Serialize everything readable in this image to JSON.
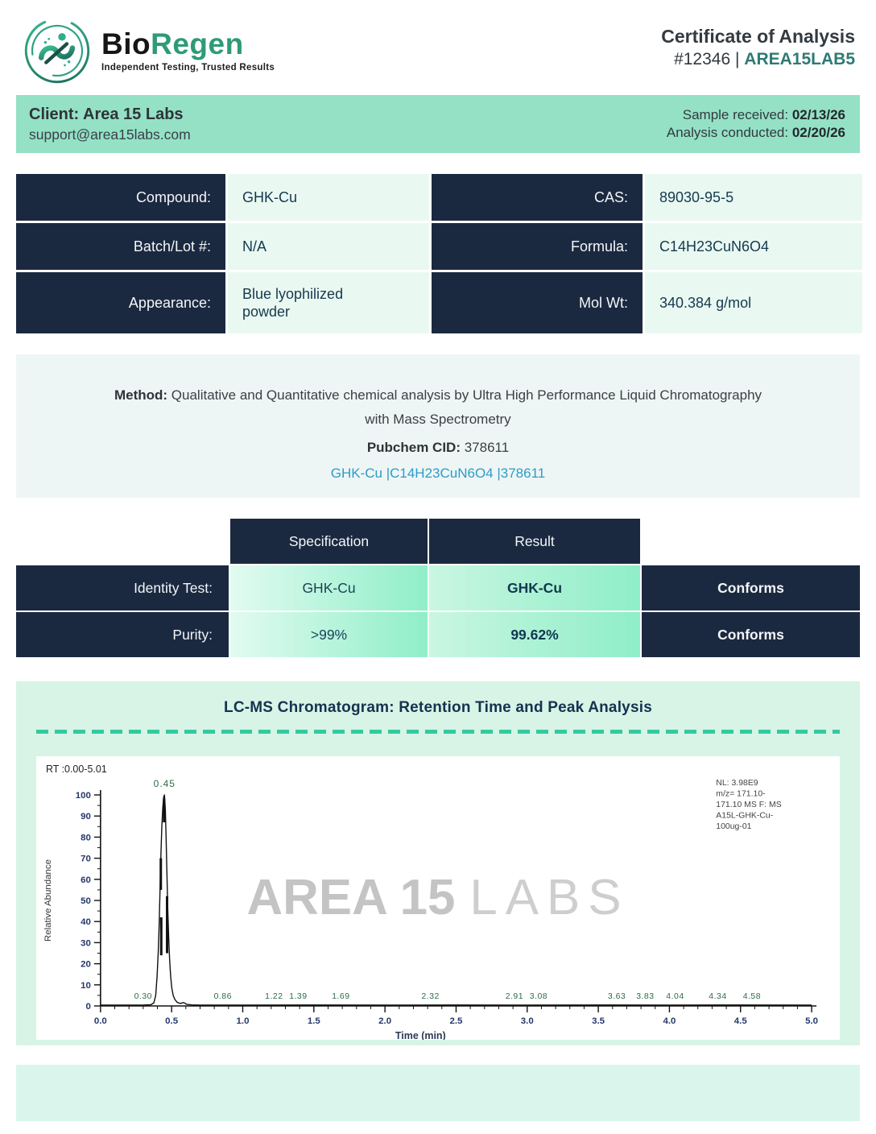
{
  "header": {
    "logo": {
      "brand_bio": "Bio",
      "brand_regen": "Regen",
      "tagline": "Independent Testing, Trusted Results"
    },
    "title": "Certificate of Analysis",
    "report_number": "#12346",
    "separator": "|",
    "report_code": "AREA15LAB5"
  },
  "client_banner": {
    "client_name": "Client: Area 15 Labs",
    "client_email": "support@area15labs.com",
    "sample_received_label": "Sample received: ",
    "sample_received_date": "02/13/26",
    "analysis_conducted_label": "Analysis conducted: ",
    "analysis_conducted_date": "02/20/26"
  },
  "compound_table": {
    "rows": [
      {
        "left_label": "Compound:",
        "left_value": "GHK-Cu",
        "right_label": "CAS:",
        "right_value": "89030-95-5"
      },
      {
        "left_label": "Batch/Lot #:",
        "left_value": "N/A",
        "right_label": "Formula:",
        "right_value": "C14H23CuN6O4"
      },
      {
        "left_label": "Appearance:",
        "left_value": "Blue lyophilized powder",
        "right_label": "Mol Wt:",
        "right_value": "340.384 g/mol"
      }
    ]
  },
  "method_section": {
    "method_label": "Method: ",
    "method_text": "Qualitative and Quantitative chemical analysis by Ultra High Performance Liquid Chromatography with Mass Spectrometry",
    "pubchem_label": "Pubchem CID: ",
    "pubchem_value": "378611",
    "link_text": "GHK-Cu |C14H23CuN6O4 |378611"
  },
  "results_table": {
    "headers": {
      "specification": "Specification",
      "result": "Result"
    },
    "rows": [
      {
        "label": "Identity Test:",
        "specification": "GHK-Cu",
        "result": "GHK-Cu",
        "status": "Conforms"
      },
      {
        "label": "Purity:",
        "specification": ">99%",
        "result": "99.62%",
        "status": "Conforms"
      }
    ]
  },
  "chromatogram": {
    "title": "LC-MS Chromatogram: Retention Time and Peak Analysis",
    "watermark": {
      "bold": "AREA 15",
      "light": "LABS"
    }
  },
  "chart_data": {
    "type": "line",
    "title": "LC-MS Chromatogram",
    "rt_label": "RT :0.00-5.01",
    "xlabel": "Time (min)",
    "ylabel": "Relative Abundance",
    "xlim": [
      0.0,
      5.0
    ],
    "ylim": [
      0,
      100
    ],
    "x_major_tick_step": 0.5,
    "x_minor_tick_step": 0.1,
    "y_major_tick_step": 10,
    "y_minor_tick_step": 5,
    "main_peak": {
      "rt": 0.45,
      "abundance": 100,
      "label": "0.45"
    },
    "minor_peak_labels": [
      "0.30",
      "0.86",
      "1.22",
      "1.39",
      "1.69",
      "2.32",
      "2.91",
      "3.08",
      "3.63",
      "3.83",
      "4.04",
      "4.34",
      "4.58"
    ],
    "trace": [
      [
        0.0,
        0.4
      ],
      [
        0.3,
        0.4
      ],
      [
        0.355,
        0.6
      ],
      [
        0.375,
        1.5
      ],
      [
        0.388,
        5
      ],
      [
        0.398,
        14
      ],
      [
        0.406,
        26
      ],
      [
        0.413,
        40
      ],
      [
        0.419,
        57
      ],
      [
        0.425,
        72
      ],
      [
        0.431,
        85
      ],
      [
        0.438,
        94
      ],
      [
        0.444,
        99
      ],
      [
        0.45,
        100
      ],
      [
        0.456,
        93
      ],
      [
        0.461,
        80
      ],
      [
        0.467,
        62
      ],
      [
        0.473,
        46
      ],
      [
        0.479,
        33
      ],
      [
        0.486,
        22
      ],
      [
        0.493,
        14
      ],
      [
        0.501,
        8.5
      ],
      [
        0.511,
        5
      ],
      [
        0.523,
        3
      ],
      [
        0.538,
        1.8
      ],
      [
        0.558,
        1.2
      ],
      [
        0.585,
        1.6
      ],
      [
        0.605,
        0.8
      ],
      [
        0.64,
        0.5
      ],
      [
        0.7,
        0.4
      ],
      [
        1.0,
        0.4
      ],
      [
        1.5,
        0.45
      ],
      [
        2.0,
        0.4
      ],
      [
        2.5,
        0.45
      ],
      [
        3.0,
        0.4
      ],
      [
        3.5,
        0.45
      ],
      [
        4.0,
        0.4
      ],
      [
        4.5,
        0.45
      ],
      [
        5.0,
        0.4
      ]
    ],
    "noise_bars": [
      [
        0.424,
        55,
        70
      ],
      [
        0.427,
        24,
        42
      ],
      [
        0.447,
        87,
        98
      ],
      [
        0.468,
        25,
        52
      ]
    ],
    "annotation_lines": [
      "NL: 3.98E9",
      "m/z= 171.10-",
      "171.10 MS F: MS",
      "A15L-GHK-Cu-",
      "100ug-01"
    ],
    "legend_position": "none",
    "grid": false
  },
  "colors": {
    "navy": "#1b2940",
    "mint_banner": "#94e1c6",
    "mint_section": "#d7f4e7",
    "cell_mint": "#e9f9f2",
    "brand_green": "#2e9b75",
    "code_teal": "#2f7a74",
    "link_blue": "#2e9bc9",
    "dash_teal": "#35c9a0",
    "peak_label_green": "#2e6b45",
    "tick_label_navy": "#26376b",
    "watermark_gray": "#c4c4c4"
  }
}
